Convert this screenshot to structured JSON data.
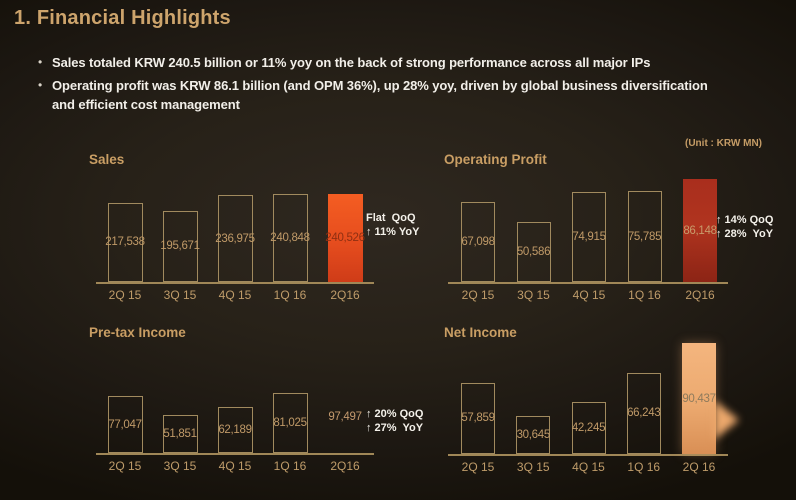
{
  "slide": {
    "title": "1. Financial Highlights",
    "bullets": [
      {
        "lines": [
          "Sales totaled KRW 240.5 billion or 11% yoy on the back of strong performance across all major IPs"
        ]
      },
      {
        "lines": [
          "Operating profit was KRW 86.1 billion (and OPM 36%), up 28% yoy, driven by global business diversification",
          "and efficient cost management"
        ]
      }
    ],
    "unit_note": "(Unit : KRW MN)"
  },
  "icons": {
    "bullet": "•",
    "up_arrow": "↑",
    "breakout_arrow": "right-pointing-arrowhead"
  },
  "colors": {
    "background": "#241e17",
    "gold_text": "#c99e64",
    "body_text": "#f2efe9",
    "bar_outline": "#a18a5e",
    "sales_highlight": "#e84d1e",
    "operating_profit_highlight": "#a52d1c",
    "pretax_highlight": "#824435",
    "net_income_highlight": "#eeab72"
  },
  "chart_data": [
    {
      "type": "bar",
      "title": "Sales",
      "categories": [
        "2Q 15",
        "3Q 15",
        "4Q 15",
        "1Q 16",
        "2Q16"
      ],
      "values": [
        217538,
        195671,
        236975,
        240848,
        240526
      ],
      "value_labels": [
        "217,538",
        "195,671",
        "236,975",
        "240,848",
        "240,526"
      ],
      "highlight_index": 4,
      "annotation_lines": [
        "Flat  QoQ",
        "↑ 11% YoY"
      ],
      "ylim": [
        0,
        250000
      ],
      "grid": false,
      "legend": false
    },
    {
      "type": "bar",
      "title": "Operating Profit",
      "categories": [
        "2Q 15",
        "3Q 15",
        "4Q 15",
        "1Q 16",
        "2Q16"
      ],
      "values": [
        67098,
        50586,
        74915,
        75785,
        86148
      ],
      "value_labels": [
        "67,098",
        "50,586",
        "74,915",
        "75,785",
        "86,148"
      ],
      "highlight_index": 4,
      "annotation_lines": [
        "↑ 14% QoQ",
        "↑ 28%  YoY"
      ],
      "ylim": [
        0,
        90000
      ],
      "grid": false,
      "legend": false
    },
    {
      "type": "bar",
      "title": "Pre-tax Income",
      "categories": [
        "2Q 15",
        "3Q 15",
        "4Q 15",
        "1Q 16",
        "2Q16"
      ],
      "values": [
        77047,
        51851,
        62189,
        81025,
        97497
      ],
      "value_labels": [
        "77,047",
        "51,851",
        "62,189",
        "81,025",
        "97,497"
      ],
      "highlight_index": 4,
      "annotation_lines": [
        "↑ 20% QoQ",
        "↑ 27%  YoY"
      ],
      "ylim": [
        0,
        100000
      ],
      "grid": false,
      "legend": false
    },
    {
      "type": "bar",
      "title": "Net Income",
      "categories": [
        "2Q 15",
        "3Q 15",
        "4Q 15",
        "1Q 16",
        "2Q 16"
      ],
      "values": [
        57859,
        30645,
        42245,
        66243,
        90437
      ],
      "value_labels": [
        "57,859",
        "30,645",
        "42,245",
        "66,243",
        "90,437"
      ],
      "highlight_index": 4,
      "annotation_lines": [],
      "has_breakout_arrow": true,
      "ylim": [
        0,
        95000
      ],
      "grid": false,
      "legend": false
    }
  ]
}
